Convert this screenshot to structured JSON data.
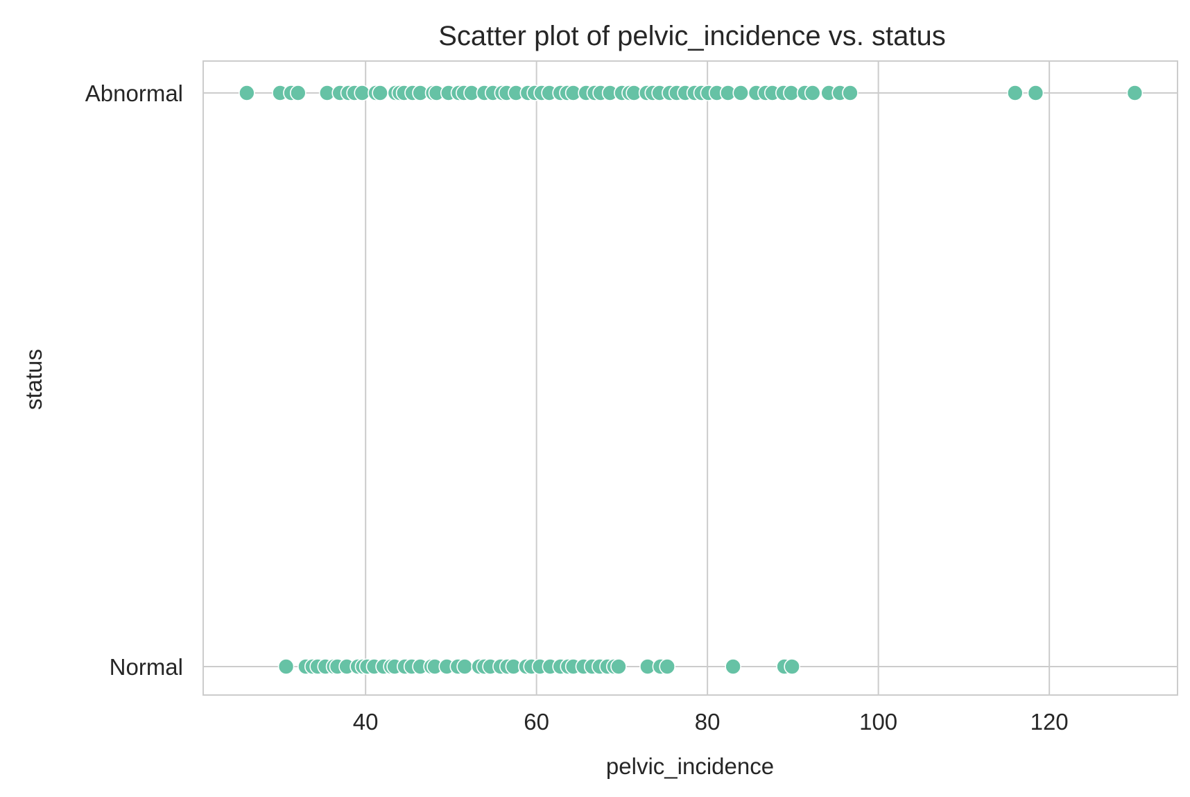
{
  "chart_data": {
    "type": "scatter",
    "title": "Scatter plot of pelvic_incidence vs. status",
    "xlabel": "pelvic_incidence",
    "ylabel": "status",
    "xlim": [
      21,
      135
    ],
    "x_ticks": [
      40,
      60,
      80,
      100,
      120
    ],
    "categories": [
      "Abnormal",
      "Normal"
    ],
    "grid": true,
    "marker_color": "#66c2a5",
    "marker_edge_color": "#ffffff",
    "series": [
      {
        "category": "Abnormal",
        "x": [
          26.1,
          30.0,
          31.3,
          32.1,
          35.5,
          37.0,
          38.0,
          38.7,
          39.6,
          41.2,
          41.7,
          43.5,
          44.0,
          44.5,
          45.5,
          46.4,
          47.9,
          48.3,
          49.7,
          50.9,
          51.5,
          52.4,
          53.9,
          54.9,
          56.0,
          56.5,
          57.6,
          59.0,
          59.8,
          60.6,
          61.5,
          62.8,
          63.6,
          64.3,
          65.8,
          66.8,
          67.5,
          68.6,
          70.0,
          70.9,
          71.4,
          72.9,
          73.6,
          74.4,
          75.6,
          76.4,
          77.4,
          78.5,
          79.3,
          80.1,
          81.1,
          82.4,
          83.9,
          85.7,
          86.8,
          87.6,
          88.9,
          89.8,
          91.4,
          92.3,
          94.2,
          95.5,
          96.7,
          116.0,
          118.4,
          130.0
        ]
      },
      {
        "category": "Normal",
        "x": [
          30.7,
          33.0,
          33.8,
          34.4,
          35.3,
          36.3,
          36.7,
          37.8,
          39.1,
          39.7,
          40.2,
          41.0,
          42.1,
          43.0,
          43.4,
          44.6,
          45.4,
          46.4,
          47.7,
          48.1,
          49.5,
          50.8,
          51.6,
          53.3,
          53.9,
          54.6,
          55.8,
          56.6,
          57.3,
          58.8,
          59.4,
          60.4,
          61.6,
          62.8,
          63.7,
          64.3,
          65.5,
          66.5,
          67.4,
          68.3,
          69.1,
          69.6,
          73.0,
          74.5,
          75.3,
          83.0,
          89.0,
          89.9
        ]
      }
    ]
  }
}
